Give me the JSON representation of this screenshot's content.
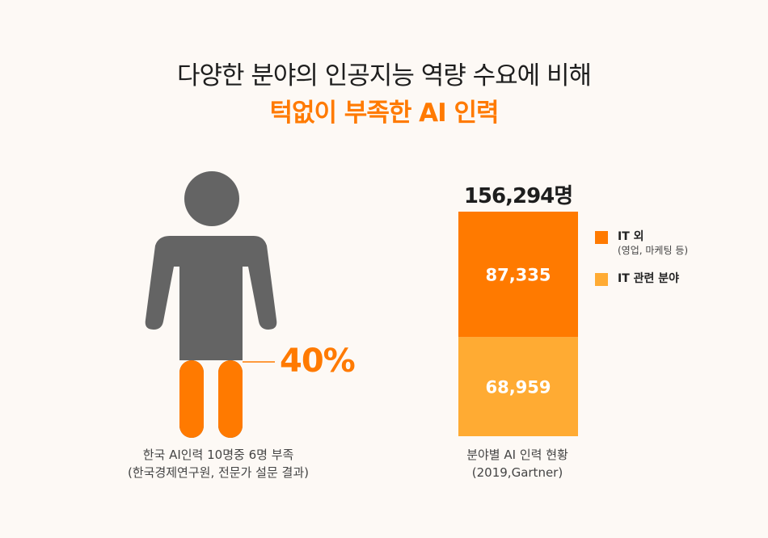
{
  "title": {
    "line1": "다양한 분야의 인공지능 역량 수요에 비해",
    "line2": "턱없이 부족한 AI 인력"
  },
  "colors": {
    "accent": "#ff7a00",
    "accent_light": "#ffab33",
    "figure_gray": "#646464",
    "background": "#fdf9f5"
  },
  "chart_data": [
    {
      "type": "pictograph",
      "value_label": "40%",
      "fill_fraction": 0.4,
      "caption_line1": "한국 AI인력 10명중 6명 부족",
      "caption_line2": "(한국경제연구원, 전문가 설문 결과)"
    },
    {
      "type": "bar",
      "stacked": true,
      "total_label": "156,294명",
      "total": 156294,
      "series": [
        {
          "name": "IT 외",
          "sub": "(영업, 마케팅 등)",
          "value": 87335,
          "value_label": "87,335",
          "color": "#ff7a00"
        },
        {
          "name": "IT 관련 분야",
          "sub": "",
          "value": 68959,
          "value_label": "68,959",
          "color": "#ffab33"
        }
      ],
      "caption_line1": "분야별 AI 인력 현황",
      "caption_line2": "(2019,Gartner)",
      "legend": "right"
    }
  ]
}
